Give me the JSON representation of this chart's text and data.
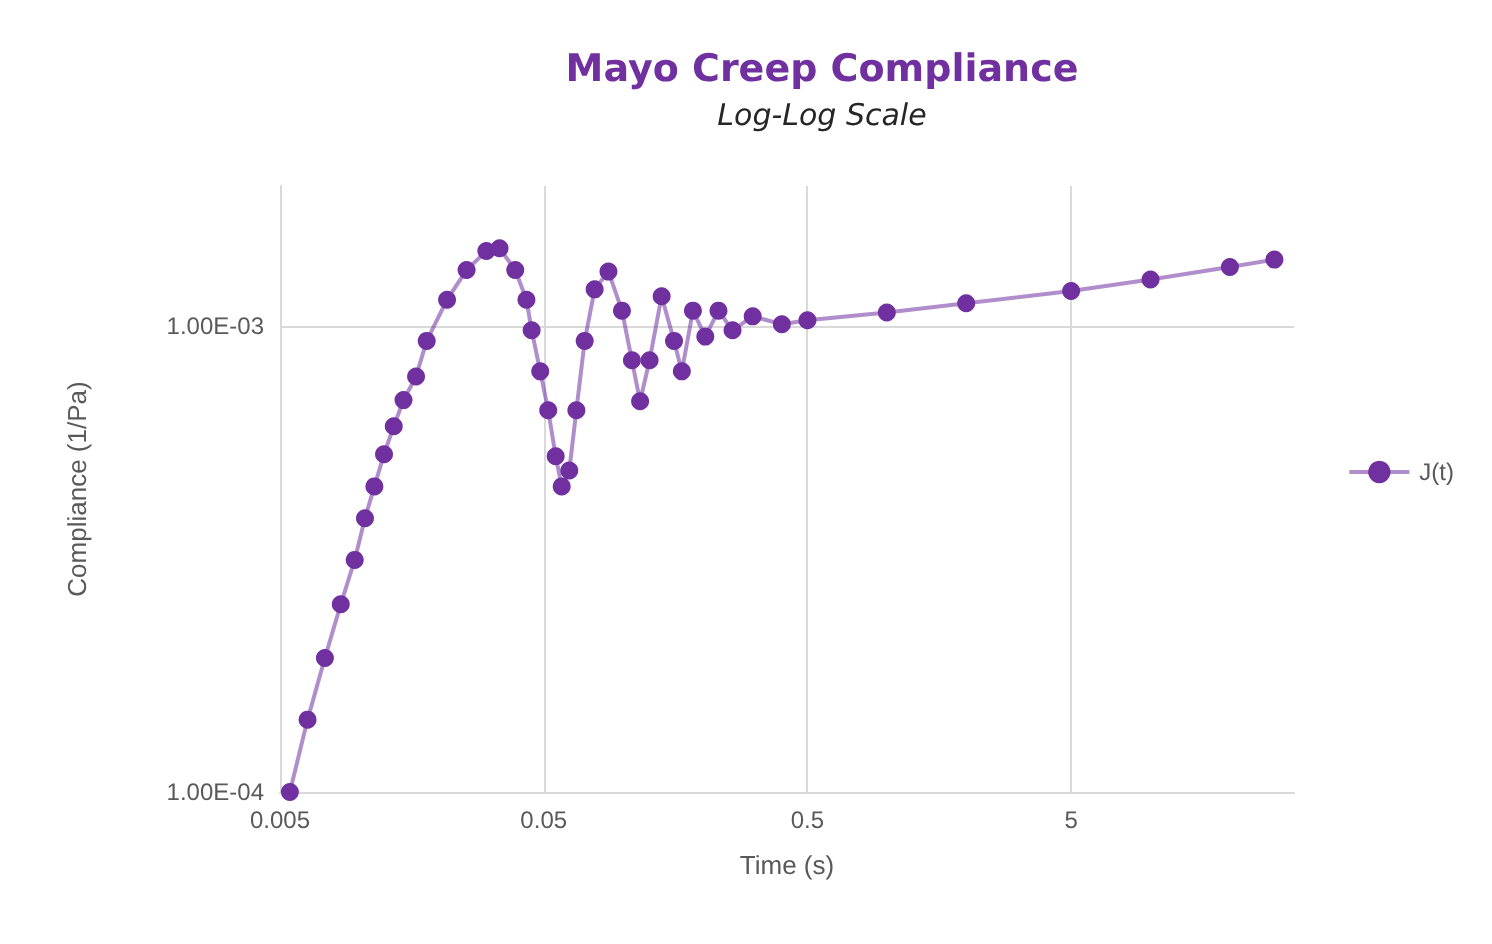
{
  "chart_data": {
    "type": "line",
    "title": "Mayo Creep Compliance",
    "subtitle": "Log-Log Scale",
    "xlabel": "Time (s)",
    "ylabel": "Compliance (1/Pa)",
    "log": "xy",
    "grid": true,
    "legend": "right",
    "marker": "circle",
    "line_style": "solid",
    "xlim": [
      0.005,
      35
    ],
    "xticks": [
      0.005,
      0.05,
      0.5,
      5
    ],
    "ylim": [
      0.0001,
      0.002
    ],
    "yticks": [
      {
        "value": 0.0001,
        "label": "1.00E-04"
      },
      {
        "value": 0.001,
        "label": "1.00E-03"
      }
    ],
    "series": [
      {
        "name": "J(t)",
        "color": "#7030a0",
        "x": [
          0.00545,
          0.00636,
          0.0074,
          0.0085,
          0.0096,
          0.0105,
          0.0114,
          0.0124,
          0.0135,
          0.0147,
          0.0164,
          0.018,
          0.0215,
          0.0255,
          0.0303,
          0.034,
          0.039,
          0.043,
          0.045,
          0.0485,
          0.052,
          0.0555,
          0.0585,
          0.0625,
          0.0665,
          0.0715,
          0.078,
          0.088,
          0.099,
          0.108,
          0.116,
          0.126,
          0.14,
          0.156,
          0.167,
          0.184,
          0.205,
          0.23,
          0.26,
          0.31,
          0.4,
          0.5,
          1,
          2,
          5,
          10,
          20,
          29.5
        ],
        "values": [
          0.0001,
          0.000143,
          0.000194,
          0.000253,
          0.000315,
          0.000387,
          0.000453,
          0.000531,
          0.00061,
          0.000694,
          0.00078,
          0.00093,
          0.00114,
          0.00132,
          0.00145,
          0.00147,
          0.00132,
          0.00114,
          0.00098,
          0.0008,
          0.00066,
          0.000526,
          0.000453,
          0.00049,
          0.00066,
          0.00093,
          0.0012,
          0.00131,
          0.00108,
          0.000845,
          0.00069,
          0.000845,
          0.00116,
          0.00093,
          0.0008,
          0.00108,
          0.00095,
          0.00108,
          0.00098,
          0.00105,
          0.00101,
          0.00103,
          0.00107,
          0.00112,
          0.00119,
          0.00126,
          0.00134,
          0.00139
        ]
      }
    ]
  }
}
